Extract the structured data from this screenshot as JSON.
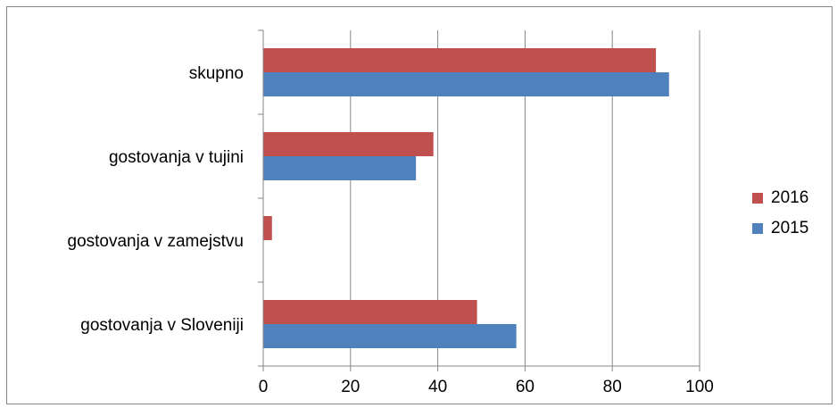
{
  "chart_data": {
    "type": "bar",
    "orientation": "horizontal",
    "categories": [
      "skupno",
      "gostovanja v tujini",
      "gostovanja v zamejstvu",
      "gostovanja v Sloveniji"
    ],
    "series": [
      {
        "name": "2016",
        "color": "#C0504D",
        "values": [
          90,
          39,
          2,
          49
        ]
      },
      {
        "name": "2015",
        "color": "#4F81BD",
        "values": [
          93,
          35,
          0,
          58
        ]
      }
    ],
    "xlim": [
      0,
      100
    ],
    "xticks": [
      "0",
      "20",
      "40",
      "60",
      "80",
      "100"
    ],
    "grid": true,
    "legend_position": "right"
  }
}
